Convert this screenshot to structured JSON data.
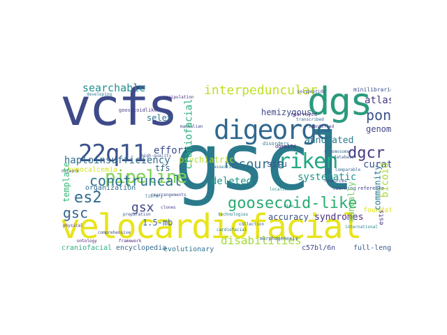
{
  "words": [
    {
      "text": "gscl",
      "color": "#2a7a8c",
      "vertical": false
    },
    {
      "text": "vcfs",
      "color": "#3e4a89",
      "vertical": false
    },
    {
      "text": "velocardiofacial",
      "color": "#e8e419",
      "vertical": false
    },
    {
      "text": "dgs",
      "color": "#2a9a7d",
      "vertical": false
    },
    {
      "text": "digeorge",
      "color": "#31688e",
      "vertical": false
    },
    {
      "text": "22q11",
      "color": "#3b528b",
      "vertical": false
    },
    {
      "text": "goosecoid-like",
      "color": "#29ab72",
      "vertical": false
    },
    {
      "text": "pipeline",
      "color": "#7ad151",
      "vertical": false
    },
    {
      "text": "es2",
      "color": "#2f6b8e",
      "vertical": false
    },
    {
      "text": "conotruncal",
      "color": "#2c728e",
      "vertical": false
    },
    {
      "text": "interpeduncular",
      "color": "#bddf26",
      "vertical": false
    },
    {
      "text": "riken",
      "color": "#22a785",
      "vertical": false
    },
    {
      "text": "resource",
      "color": "#2d708e",
      "vertical": false
    },
    {
      "text": "pons",
      "color": "#3b518b",
      "vertical": false
    },
    {
      "text": "dgcr",
      "color": "#443983",
      "vertical": false
    },
    {
      "text": "gsc",
      "color": "#33638d",
      "vertical": false
    },
    {
      "text": "gsx",
      "color": "#3f4788",
      "vertical": false
    },
    {
      "text": "searchable",
      "color": "#21908d",
      "vertical": false
    },
    {
      "text": "haploinsufficiency",
      "color": "#2f6c8e",
      "vertical": false
    },
    {
      "text": "deleted",
      "color": "#1f958b",
      "vertical": false
    },
    {
      "text": "disabilities",
      "color": "#a2da37",
      "vertical": false
    },
    {
      "text": "effort",
      "color": "#3e4c8a",
      "vertical": false
    },
    {
      "text": "psychiatric",
      "color": "#b5de2b",
      "vertical": false
    },
    {
      "text": "systematic",
      "color": "#20938c",
      "vertical": false
    },
    {
      "text": "annotated",
      "color": "#287c8e",
      "vertical": false
    },
    {
      "text": "curated",
      "color": "#3a548c",
      "vertical": false
    },
    {
      "text": "syndromes",
      "color": "#472d7b",
      "vertical": false
    },
    {
      "text": "accuracy",
      "color": "#3c4f8a",
      "vertical": false
    },
    {
      "text": "atlas",
      "color": "#453581",
      "vertical": false
    },
    {
      "text": "genome",
      "color": "#414487",
      "vertical": false
    },
    {
      "text": "hemizygous",
      "color": "#3f4889",
      "vertical": false
    },
    {
      "text": "selex",
      "color": "#2c718e",
      "vertical": false
    },
    {
      "text": "1.5-mb",
      "color": "#32648e",
      "vertical": false
    },
    {
      "text": "tfs",
      "color": "#355e8d",
      "vertical": false
    },
    {
      "text": "hypocalcemia",
      "color": "#d2e21b",
      "vertical": false
    },
    {
      "text": "organization",
      "color": "#30688e",
      "vertical": false
    },
    {
      "text": "situ",
      "color": "#38588c",
      "vertical": false
    },
    {
      "text": "craniofacial",
      "color": "#29af7f",
      "vertical": false
    },
    {
      "text": "encyclopedia",
      "color": "#31678e",
      "vertical": false
    },
    {
      "text": "evolutionary",
      "color": "#2c738e",
      "vertical": false
    },
    {
      "text": "c57bl/6n",
      "color": "#404588",
      "vertical": false
    },
    {
      "text": "full-length",
      "color": "#38598c",
      "vertical": false
    },
    {
      "text": "hybridization",
      "color": "#3a548c",
      "vertical": false
    },
    {
      "text": "community",
      "color": "#2a788e",
      "vertical": false
    },
    {
      "text": "bicoid",
      "color": "#a8db34",
      "vertical": false
    },
    {
      "text": "template",
      "color": "#35b779",
      "vertical": false
    },
    {
      "text": "manually",
      "color": "#6ece58",
      "vertical": false
    },
    {
      "text": "foundation",
      "color": "#dde318",
      "vertical": false
    },
    {
      "text": "ests",
      "color": "#46327e",
      "vertical": false
    },
    {
      "text": "minilibraries",
      "color": "#3d4e8a",
      "vertical": false
    },
    {
      "text": "goosecoidlike",
      "color": "#443a83",
      "vertical": false
    },
    {
      "text": "rearrayed",
      "color": "#46337f",
      "vertical": false
    },
    {
      "text": "dgem17d",
      "color": "#482677",
      "vertical": false
    },
    {
      "text": "reference",
      "color": "#3f4788",
      "vertical": false
    },
    {
      "text": "learning",
      "color": "#3b528b",
      "vertical": false
    },
    {
      "text": "disorders",
      "color": "#2d708e",
      "vertical": false
    },
    {
      "text": "chromosome",
      "color": "#31688e",
      "vertical": false
    },
    {
      "text": "morphogenesis",
      "color": "#355f8d",
      "vertical": false
    },
    {
      "text": "cardiofacial",
      "color": "#2a788e",
      "vertical": false
    },
    {
      "text": "developing",
      "color": "#2c718e",
      "vertical": false
    },
    {
      "text": "physical",
      "color": "#46307e",
      "vertical": false
    },
    {
      "text": "comprehensive",
      "color": "#404588",
      "vertical": false
    },
    {
      "text": "transcribed",
      "color": "#33638d",
      "vertical": false
    },
    {
      "text": "database",
      "color": "#38588c",
      "vertical": false
    },
    {
      "text": "library",
      "color": "#2e6e8e",
      "vertical": false
    },
    {
      "text": "location",
      "color": "#21918c",
      "vertical": false
    },
    {
      "text": "vivo",
      "color": "#2c738e",
      "vertical": false
    },
    {
      "text": "network",
      "color": "#3d4d8a",
      "vertical": false
    },
    {
      "text": "manipulation",
      "color": "#472f7d",
      "vertical": false
    },
    {
      "text": "rearrangements",
      "color": "#3f4889",
      "vertical": false
    },
    {
      "text": "high-quality",
      "color": "#3b528b",
      "vertical": false
    },
    {
      "text": "technologies",
      "color": "#26828e",
      "vertical": false
    },
    {
      "text": "mammalian",
      "color": "#414487",
      "vertical": false
    },
    {
      "text": "collection",
      "color": "#33638d",
      "vertical": false
    },
    {
      "text": "assertions",
      "color": "#2d708e",
      "vertical": false
    },
    {
      "text": "identified",
      "color": "#453882",
      "vertical": false
    },
    {
      "text": "framework",
      "color": "#482475",
      "vertical": false
    },
    {
      "text": "polypeptide",
      "color": "#3e4a89",
      "vertical": false
    },
    {
      "text": "comparable",
      "color": "#31688e",
      "vertical": false
    },
    {
      "text": "preparation",
      "color": "#3b528b",
      "vertical": false
    },
    {
      "text": "genes",
      "color": "#2a788e",
      "vertical": false
    },
    {
      "text": "clones",
      "color": "#433e85",
      "vertical": false
    },
    {
      "text": "resources",
      "color": "#404688",
      "vertical": false
    },
    {
      "text": "international",
      "color": "#26828e",
      "vertical": false
    },
    {
      "text": "ontology",
      "color": "#481a6c",
      "vertical": false
    }
  ]
}
